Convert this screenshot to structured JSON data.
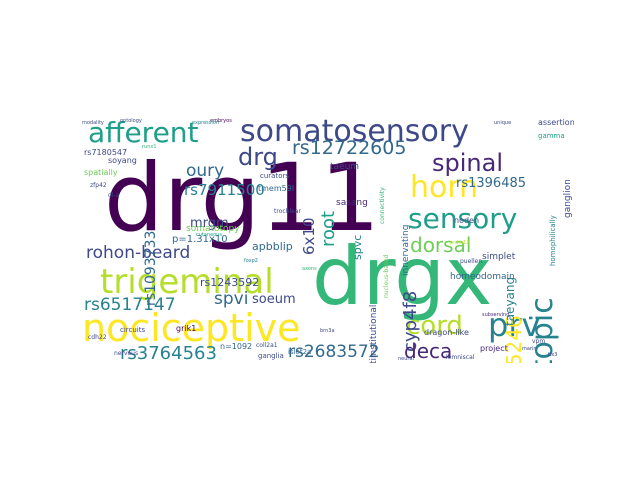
{
  "words": {
    "drg11": "drg11",
    "drgx": "drgx",
    "nociceptive": "nociceptive",
    "somatosensory": "somatosensory",
    "somatotopic": "somatotopic",
    "trigeminal": "trigeminal",
    "afferent": "afferent",
    "horn": "horn",
    "sensory": "sensory",
    "spinal": "spinal",
    "prv": "prv",
    "cord": "cord",
    "drg": "drg",
    "rs12722605": "rs12722605",
    "rohon_beard": "rohon-beard",
    "rs3764563": "rs3764563",
    "rs2683572": "rs2683572",
    "rs6517147": "rs6517147",
    "dorsal": "dorsal",
    "oury": "oury",
    "rs7911500": "rs7911500",
    "rs1093733": "rs1093733",
    "mrgm": "mrgm",
    "root": "root",
    "cyp4f8": "cyp4f8",
    "deca": "deca",
    "rs1775246": "rs1775246",
    "rs1396485": "rs1396485",
    "spvi": "spvi",
    "soeum": "soeum",
    "apbblip": "apbblip",
    "spvc": "spvc",
    "six_x10": "6x10",
    "taeyang": "taeyang",
    "rs1243592": "rs1243592",
    "p_val": "p=1.31x10",
    "somatotopy": "somatotopy",
    "homeodomain": "homeodomain",
    "sasang": "sasang",
    "innervating": "innervating",
    "multi": "multiinstitutional",
    "assertions": "assertions",
    "ganglion": "ganglion",
    "homophilically": "homophilically",
    "gamma": "gamma",
    "noden": "noden",
    "simplet": "simplet",
    "project": "project",
    "taeum": "taeum",
    "curators": "curators",
    "tmem59l": "tmem59l",
    "grik1": "grik1",
    "n1092": "n=1092",
    "isl2a": "islet2a",
    "ganglia": "ganglia",
    "coll2a": "coll2a1",
    "lemnisc": "lemniscal",
    "dragon": "dragon-like",
    "rs7180547": "rs7180547",
    "soyang": "soyang",
    "spatially": "spatially",
    "zfp42": "zfp42",
    "circuits": "circuits",
    "nervous": "nervous",
    "trochlear": "trochlear",
    "cdh22": "cdh22",
    "neuroproc": "nucleus-based",
    "puellen": "puellen",
    "small_a": "ontology",
    "small_b": "embryos",
    "small_c": "expression",
    "small_d": "connectivity",
    "small_e": "unique",
    "small_f": "vpm",
    "small_g": "modality",
    "small_h": "subserving",
    "small_i": "neural",
    "small_j": "cutaneous",
    "small_k": "marin",
    "small_l": "prdm12",
    "small_m": "dl-a",
    "small_n": "foxp2",
    "small_o": "axons",
    "small_p": "tlx3",
    "small_q": "brn3a",
    "small_r": "runx1"
  },
  "colors": {
    "dark_purple": "#440154",
    "purple": "#482878",
    "indigo": "#3e4989",
    "blue": "#31688e",
    "teal": "#26828e",
    "green_teal": "#1f9e89",
    "green": "#35b779",
    "light_green": "#6ece58",
    "lime": "#b5de2b",
    "yellow": "#fde725"
  }
}
